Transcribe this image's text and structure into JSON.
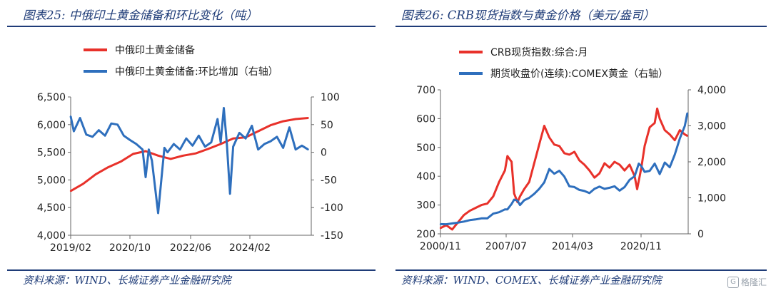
{
  "panels": [
    {
      "title": "图表25:  中俄印土黄金储备和环比变化（吨）",
      "source": "资料来源：WIND、长城证券产业金融研究院"
    },
    {
      "title": "图表26:  CRB现货指数与黄金价格（美元/盎司）",
      "source": "资料来源：WIND、COMEX、长城证券产业金融研究院"
    }
  ],
  "watermark": "格隆汇",
  "chart_data": [
    {
      "type": "line",
      "title": "",
      "xlabel": "",
      "ylabel": "",
      "x_tick_labels": [
        "2019/02",
        "2020/10",
        "2022/06",
        "2024/02"
      ],
      "y_left_ticks": [
        "4,000",
        "4,500",
        "5,000",
        "5,500",
        "6,000",
        "6,500"
      ],
      "y_right_ticks": [
        "-150",
        "-100",
        "-50",
        "0",
        "50",
        "100"
      ],
      "ylim_left": [
        4000,
        6500
      ],
      "ylim_right": [
        -150,
        100
      ],
      "legend_position": "top-left",
      "colors": {
        "series1": "#e8312a",
        "series2": "#2e6fbd"
      },
      "series": [
        {
          "name": "中俄印土黄金储备",
          "axis": "left",
          "x": [
            "2019/02",
            "2019/06",
            "2019/10",
            "2020/02",
            "2020/06",
            "2020/10",
            "2021/02",
            "2021/06",
            "2021/10",
            "2022/02",
            "2022/06",
            "2022/10",
            "2023/02",
            "2023/06",
            "2023/10",
            "2024/02",
            "2024/06",
            "2024/10",
            "2025/02",
            "2025/06"
          ],
          "values": [
            4800,
            4930,
            5100,
            5230,
            5330,
            5470,
            5520,
            5440,
            5380,
            5440,
            5480,
            5560,
            5650,
            5750,
            5770,
            5880,
            5990,
            6060,
            6100,
            6120
          ]
        },
        {
          "name": "中俄印土黄金储备:环比增加（右轴）",
          "axis": "right",
          "x": [
            "2019/02",
            "2019/03",
            "2019/05",
            "2019/07",
            "2019/09",
            "2019/11",
            "2020/01",
            "2020/03",
            "2020/05",
            "2020/07",
            "2020/09",
            "2020/11",
            "2021/01",
            "2021/02",
            "2021/03",
            "2021/04",
            "2021/06",
            "2021/08",
            "2021/09",
            "2021/11",
            "2022/01",
            "2022/03",
            "2022/05",
            "2022/07",
            "2022/09",
            "2022/11",
            "2023/01",
            "2023/02",
            "2023/03",
            "2023/04",
            "2023/05",
            "2023/06",
            "2023/08",
            "2023/10",
            "2023/12",
            "2024/02",
            "2024/04",
            "2024/06",
            "2024/08",
            "2024/10",
            "2024/12",
            "2025/02",
            "2025/04",
            "2025/06"
          ],
          "values": [
            65,
            38,
            62,
            32,
            28,
            40,
            30,
            52,
            50,
            30,
            22,
            15,
            5,
            -45,
            5,
            -15,
            -110,
            8,
            0,
            15,
            5,
            25,
            12,
            30,
            10,
            18,
            60,
            18,
            80,
            15,
            -75,
            10,
            35,
            25,
            48,
            5,
            15,
            20,
            28,
            8,
            45,
            5,
            12,
            5
          ]
        }
      ]
    },
    {
      "type": "line",
      "title": "",
      "xlabel": "",
      "ylabel": "",
      "x_tick_labels": [
        "2000/11",
        "2007/07",
        "2014/03",
        "2020/11"
      ],
      "y_left_ticks": [
        "200",
        "300",
        "400",
        "500",
        "600",
        "700"
      ],
      "y_right_ticks": [
        "0",
        "1,000",
        "2,000",
        "3,000",
        "4,000"
      ],
      "ylim_left": [
        200,
        700
      ],
      "ylim_right": [
        0,
        4000
      ],
      "legend_position": "top-left",
      "colors": {
        "series1": "#e8312a",
        "series2": "#2e6fbd"
      },
      "series": [
        {
          "name": "CRB现货指数:综合:月",
          "axis": "left",
          "x": [
            "2000/11",
            "2001/06",
            "2002/01",
            "2002/08",
            "2003/03",
            "2003/10",
            "2004/05",
            "2004/12",
            "2005/07",
            "2006/02",
            "2006/09",
            "2007/04",
            "2007/07",
            "2007/12",
            "2008/03",
            "2008/07",
            "2008/10",
            "2009/03",
            "2009/09",
            "2010/03",
            "2010/09",
            "2011/03",
            "2011/09",
            "2012/03",
            "2012/09",
            "2013/03",
            "2013/09",
            "2014/03",
            "2014/09",
            "2015/03",
            "2015/09",
            "2016/03",
            "2016/09",
            "2017/03",
            "2017/09",
            "2018/03",
            "2018/09",
            "2019/03",
            "2019/09",
            "2020/03",
            "2020/06",
            "2020/11",
            "2021/03",
            "2021/09",
            "2022/03",
            "2022/06",
            "2022/09",
            "2023/03",
            "2023/09",
            "2024/03",
            "2024/09",
            "2025/03",
            "2025/06"
          ],
          "values": [
            220,
            230,
            215,
            240,
            265,
            280,
            290,
            300,
            305,
            330,
            380,
            420,
            470,
            450,
            340,
            310,
            330,
            355,
            380,
            445,
            510,
            575,
            535,
            510,
            505,
            480,
            475,
            485,
            455,
            440,
            420,
            395,
            410,
            445,
            430,
            450,
            440,
            420,
            440,
            400,
            355,
            430,
            505,
            570,
            585,
            635,
            600,
            560,
            545,
            525,
            560,
            545,
            540
          ]
        },
        {
          "name": "期货收盘价(连续):COMEX黄金（右轴）",
          "axis": "right",
          "x": [
            "2000/11",
            "2001/06",
            "2002/01",
            "2002/08",
            "2003/03",
            "2003/10",
            "2004/05",
            "2004/12",
            "2005/07",
            "2006/02",
            "2006/09",
            "2007/04",
            "2007/07",
            "2007/12",
            "2008/03",
            "2008/07",
            "2008/10",
            "2009/03",
            "2009/09",
            "2010/03",
            "2010/09",
            "2011/03",
            "2011/09",
            "2012/03",
            "2012/09",
            "2013/03",
            "2013/09",
            "2014/03",
            "2014/09",
            "2015/03",
            "2015/09",
            "2016/03",
            "2016/09",
            "2017/03",
            "2017/09",
            "2018/03",
            "2018/09",
            "2019/03",
            "2019/09",
            "2020/03",
            "2020/08",
            "2020/11",
            "2021/03",
            "2021/09",
            "2022/03",
            "2022/09",
            "2023/03",
            "2023/09",
            "2024/03",
            "2024/09",
            "2025/03",
            "2025/06"
          ],
          "values": [
            270,
            265,
            290,
            310,
            340,
            380,
            400,
            430,
            430,
            560,
            600,
            680,
            680,
            830,
            950,
            920,
            800,
            930,
            1000,
            1110,
            1250,
            1430,
            1800,
            1670,
            1750,
            1590,
            1320,
            1300,
            1220,
            1190,
            1130,
            1250,
            1310,
            1250,
            1280,
            1320,
            1200,
            1300,
            1500,
            1600,
            1950,
            1880,
            1720,
            1750,
            1950,
            1660,
            1980,
            1850,
            2200,
            2650,
            3000,
            3350
          ]
        }
      ]
    }
  ]
}
